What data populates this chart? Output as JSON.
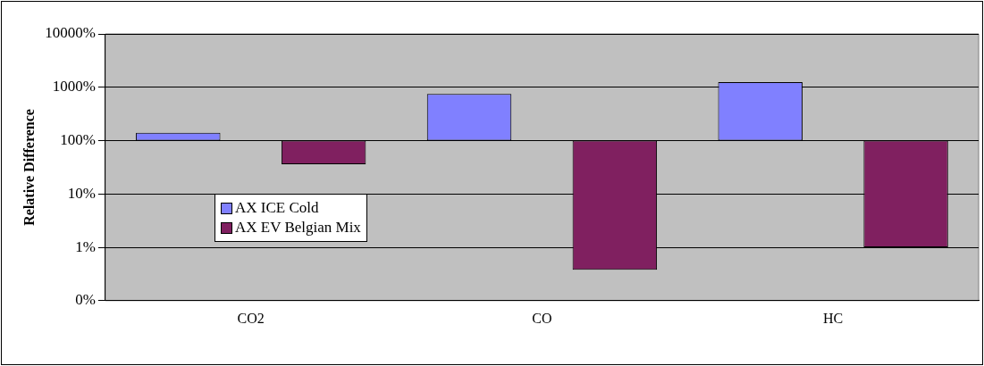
{
  "chart_data": {
    "type": "bar",
    "ylabel": "Relative Difference",
    "categories": [
      "CO2",
      "CO",
      "HC"
    ],
    "series": [
      {
        "name": "AX ICE Cold",
        "color": "#8080ff",
        "base": [
          100,
          100,
          100
        ],
        "values": [
          40,
          650,
          1150
        ]
      },
      {
        "name": "AX EV Belgian Mix",
        "color": "#802060",
        "base": [
          100,
          100,
          100
        ],
        "values": [
          -64,
          -99.62,
          -99
        ]
      }
    ],
    "log": true,
    "ylim": [
      0.1,
      10000
    ],
    "yticks": [
      {
        "value": 0.1,
        "label": "0%"
      },
      {
        "value": 1,
        "label": "1%"
      },
      {
        "value": 10,
        "label": "10%"
      },
      {
        "value": 100,
        "label": "100%"
      },
      {
        "value": 1000,
        "label": "1000%"
      },
      {
        "value": 10000,
        "label": "10000%"
      }
    ],
    "grid": "y",
    "legend": "bottom left"
  }
}
